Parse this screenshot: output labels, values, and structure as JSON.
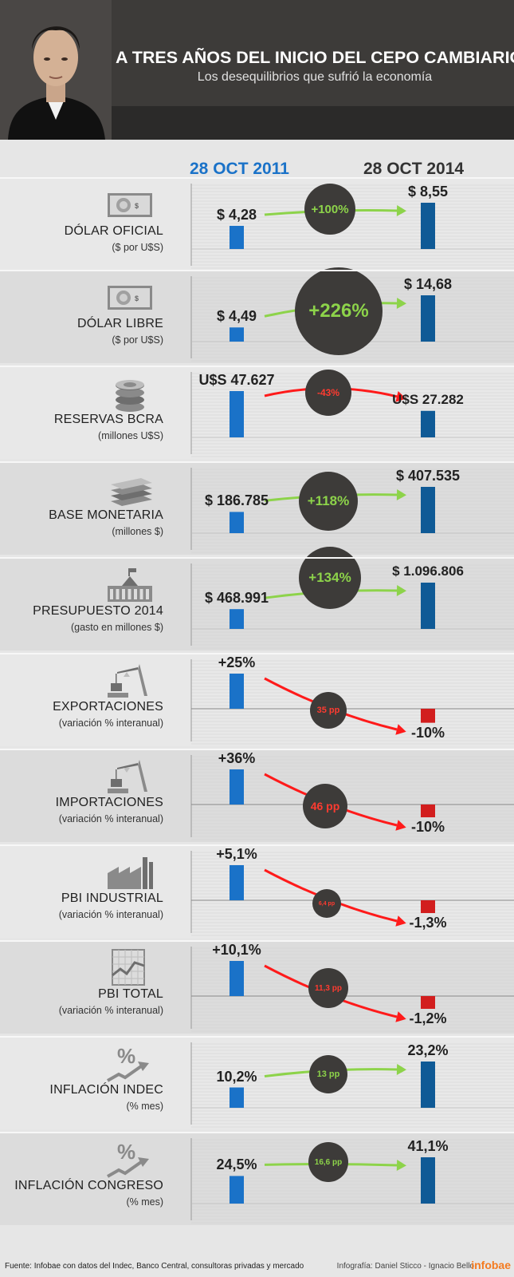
{
  "header": {
    "title": "A TRES AÑOS DEL INICIO DEL CEPO CAMBIARIO",
    "subtitle": "Los desequilibrios que sufrió la economía"
  },
  "years": {
    "start": "28 OCT 2011",
    "end": "28 OCT 2014"
  },
  "colors": {
    "bar_2011": "#1a72c8",
    "bar_2014": "#0f5a96",
    "negative": "#d21e1e",
    "up_arrow": "#8dd34a",
    "down_arrow": "#ff1a1a",
    "badge": "#3d3b39"
  },
  "chart_data": [
    {
      "type": "bar",
      "label": "DÓLAR OFICIAL",
      "sublabel": "($ por U$S)",
      "icon": "banknote-icon",
      "categories": [
        "28 OCT 2011",
        "28 OCT 2014"
      ],
      "values": [
        4.28,
        8.55
      ],
      "value_labels": [
        "$ 4,28",
        "$ 8,55"
      ],
      "change": "+100%",
      "direction": "up"
    },
    {
      "type": "bar",
      "label": "DÓLAR LIBRE",
      "sublabel": "($ por U$S)",
      "icon": "banknote-icon",
      "categories": [
        "28 OCT 2011",
        "28 OCT 2014"
      ],
      "values": [
        4.49,
        14.68
      ],
      "value_labels": [
        "$ 4,49",
        "$ 14,68"
      ],
      "change": "+226%",
      "direction": "up"
    },
    {
      "type": "bar",
      "label": "RESERVAS BCRA",
      "sublabel": "(millones U$S)",
      "icon": "coins-icon",
      "categories": [
        "28 OCT 2011",
        "28 OCT 2014"
      ],
      "values": [
        47627,
        27282
      ],
      "value_labels": [
        "U$S 47.627",
        "U$S 27.282"
      ],
      "change": "-43%",
      "direction": "down"
    },
    {
      "type": "bar",
      "label": "BASE MONETARIA",
      "sublabel": "(millones $)",
      "icon": "money-stack-icon",
      "categories": [
        "28 OCT 2011",
        "28 OCT 2014"
      ],
      "values": [
        186785,
        407535
      ],
      "value_labels": [
        "$ 186.785",
        "$ 407.535"
      ],
      "change": "+118%",
      "direction": "up"
    },
    {
      "type": "bar",
      "label": "PRESUPUESTO 2014",
      "sublabel": "(gasto en millones $)",
      "icon": "government-building-icon",
      "categories": [
        "28 OCT 2011",
        "28 OCT 2014"
      ],
      "values": [
        468991,
        1096806
      ],
      "value_labels": [
        "$ 468.991",
        "$ 1.096.806"
      ],
      "change": "+134%",
      "direction": "up"
    },
    {
      "type": "bar",
      "label": "EXPORTACIONES",
      "sublabel": "(variación % interanual)",
      "icon": "crane-export-icon",
      "categories": [
        "28 OCT 2011",
        "28 OCT 2014"
      ],
      "values": [
        25,
        -10
      ],
      "value_labels": [
        "+25%",
        "-10%"
      ],
      "change": "35 pp",
      "direction": "down"
    },
    {
      "type": "bar",
      "label": "IMPORTACIONES",
      "sublabel": "(variación % interanual)",
      "icon": "crane-import-icon",
      "categories": [
        "28 OCT 2011",
        "28 OCT 2014"
      ],
      "values": [
        36,
        -10
      ],
      "value_labels": [
        "+36%",
        "-10%"
      ],
      "change": "46 pp",
      "direction": "down"
    },
    {
      "type": "bar",
      "label": "PBI INDUSTRIAL",
      "sublabel": "(variación % interanual)",
      "icon": "factory-icon",
      "categories": [
        "28 OCT 2011",
        "28 OCT 2014"
      ],
      "values": [
        5.1,
        -1.3
      ],
      "value_labels": [
        "+5,1%",
        "-1,3%"
      ],
      "change": "6,4 pp",
      "direction": "down"
    },
    {
      "type": "bar",
      "label": "PBI TOTAL",
      "sublabel": "(variación % interanual)",
      "icon": "line-chart-icon",
      "categories": [
        "28 OCT 2011",
        "28 OCT 2014"
      ],
      "values": [
        10.1,
        -1.2
      ],
      "value_labels": [
        "+10,1%",
        "-1,2%"
      ],
      "change": "11,3 pp",
      "direction": "down"
    },
    {
      "type": "bar",
      "label": "INFLACIÓN INDEC",
      "sublabel": "(% mes)",
      "icon": "percent-arrow-icon",
      "categories": [
        "28 OCT 2011",
        "28 OCT 2014"
      ],
      "values": [
        10.2,
        23.2
      ],
      "value_labels": [
        "10,2%",
        "23,2%"
      ],
      "change": "13 pp",
      "direction": "up"
    },
    {
      "type": "bar",
      "label": "INFLACIÓN CONGRESO",
      "sublabel": "(% mes)",
      "icon": "percent-arrow-icon",
      "categories": [
        "28 OCT 2011",
        "28 OCT 2014"
      ],
      "values": [
        24.5,
        41.1
      ],
      "value_labels": [
        "24,5%",
        "41,1%"
      ],
      "change": "16,6 pp",
      "direction": "up"
    }
  ],
  "footer": {
    "source": "Fuente: Infobae con datos del Indec, Banco Central, consultoras privadas y mercado",
    "credit": "Infografía: Daniel Sticco - Ignacio Bello",
    "logo": "infobae"
  }
}
